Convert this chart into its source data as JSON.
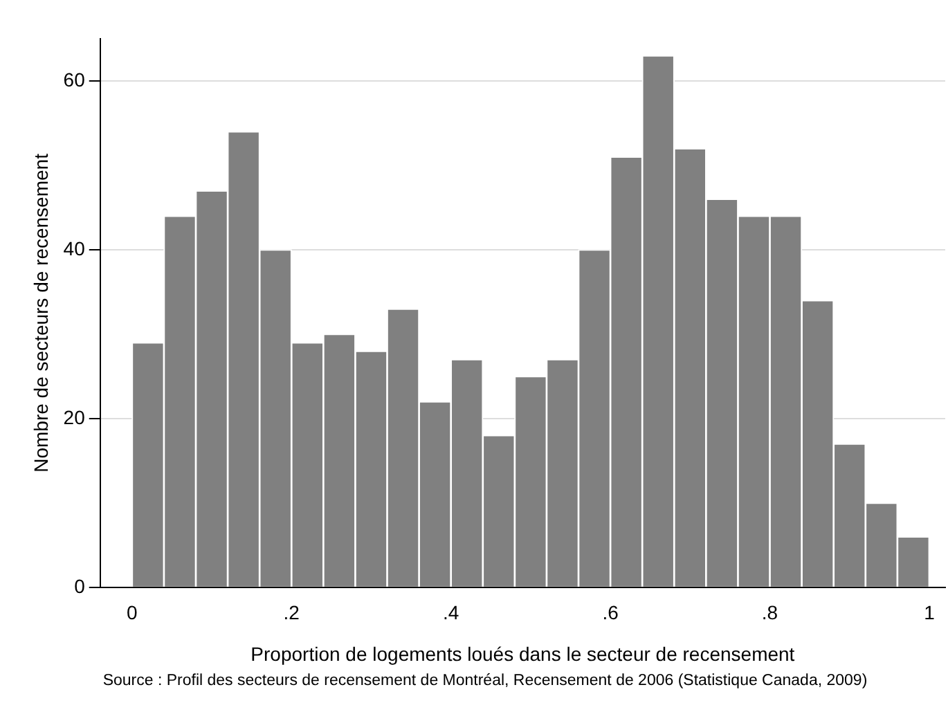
{
  "chart_data": {
    "type": "histogram",
    "xlabel": "Proportion de logements loués dans le secteur de recensement",
    "ylabel": "Nombre de secteurs de recensement",
    "bins": [
      0,
      0.04,
      0.08,
      0.12,
      0.16,
      0.2,
      0.24,
      0.28,
      0.32,
      0.36,
      0.4,
      0.44,
      0.48,
      0.52,
      0.56,
      0.6,
      0.64,
      0.68,
      0.72,
      0.76,
      0.8,
      0.84,
      0.88,
      0.92,
      0.96,
      1
    ],
    "values": [
      29,
      44,
      47,
      54,
      40,
      29,
      30,
      28,
      33,
      22,
      27,
      18,
      25,
      27,
      40,
      51,
      63,
      52,
      46,
      44,
      44,
      34,
      17,
      10,
      6
    ],
    "color": "#808080",
    "xlim": [
      -0.04,
      1.02
    ],
    "xticks": [
      0,
      {
        "value": 0.2,
        "label": ".2"
      },
      {
        "value": 0.4,
        "label": ".4"
      },
      {
        "value": 0.6,
        "label": ".6"
      },
      {
        "value": 0.8,
        "label": ".8"
      },
      1
    ],
    "ylim": [
      0,
      65
    ],
    "yticks": [
      0,
      20,
      40,
      60
    ],
    "grid": "y",
    "annotations": [
      "Source : Profil des secteurs de recensement de Montréal, Recensement de 2006 (Statistique Canada, 2009)"
    ]
  }
}
